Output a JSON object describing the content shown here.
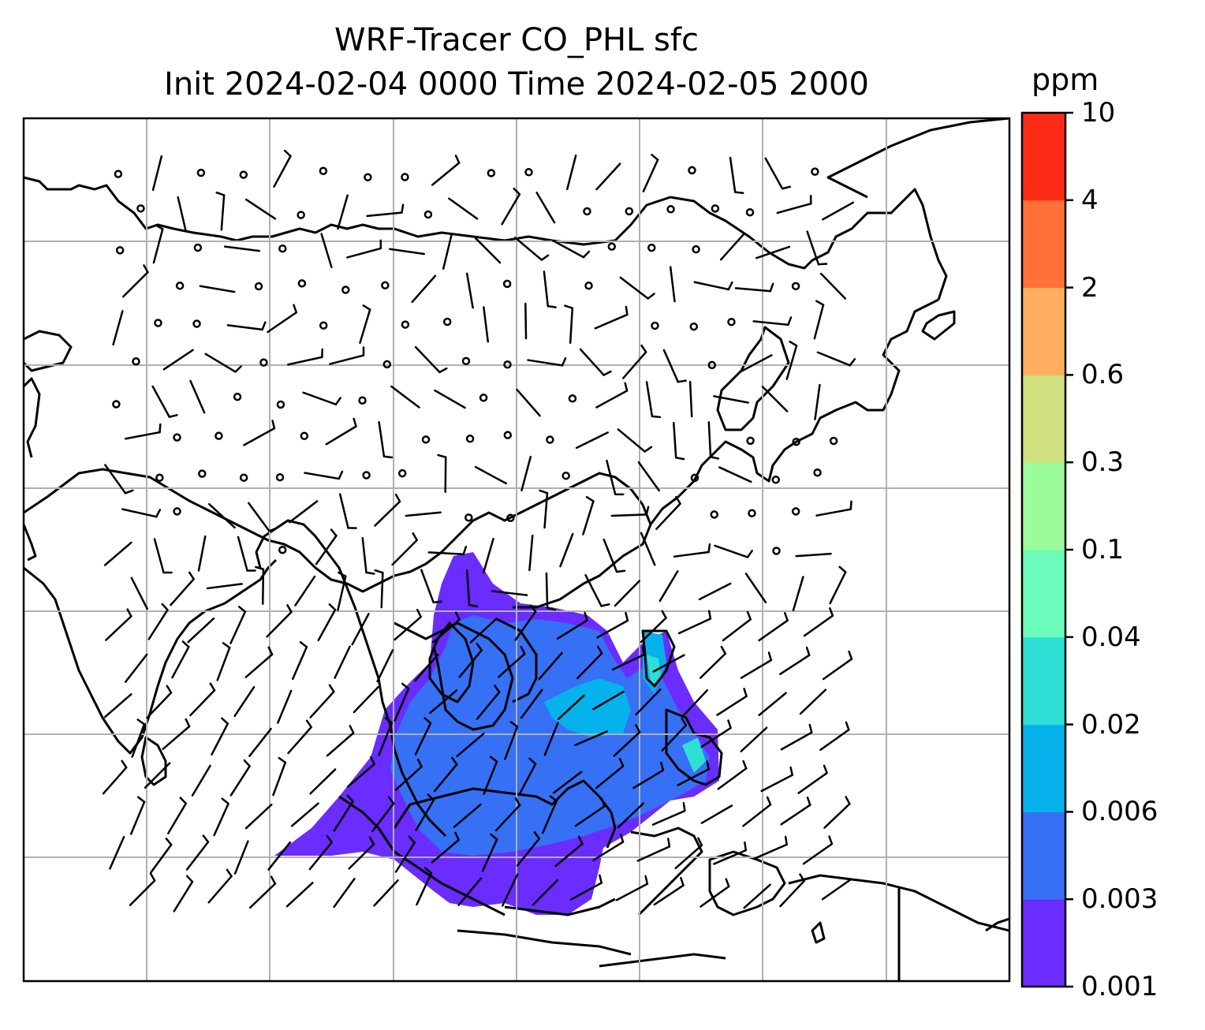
{
  "title": {
    "line1": "WRF-Tracer CO_PHL sfc",
    "line2": "Init 2024-02-04 0000 Time 2024-02-05 2000"
  },
  "colorbar": {
    "units": "ppm",
    "levels": [
      {
        "label": "0.001",
        "color": "#6a2cff"
      },
      {
        "label": "0.003",
        "color": "#3670f5"
      },
      {
        "label": "0.006",
        "color": "#06b2eb"
      },
      {
        "label": "0.02",
        "color": "#2fdfd5"
      },
      {
        "label": "0.04",
        "color": "#6bfcbb"
      },
      {
        "label": "0.1",
        "color": "#9cfb9a"
      },
      {
        "label": "0.3",
        "color": "#cfe07f"
      },
      {
        "label": "0.6",
        "color": "#ffae60"
      },
      {
        "label": "2",
        "color": "#ff7138"
      },
      {
        "label": "4",
        "color": "#fe2c16"
      },
      {
        "label": "10",
        "color": ""
      }
    ]
  },
  "map": {
    "gridlines": true,
    "features": [
      "coastlines",
      "wind-barbs",
      "tracer-concentration"
    ]
  }
}
